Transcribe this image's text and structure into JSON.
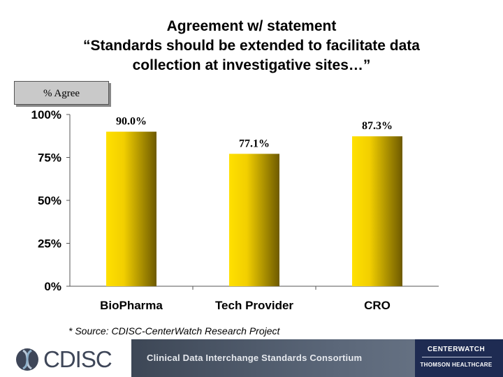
{
  "title_lines": [
    "Agreement w/ statement",
    "“Standards should be extended to facilitate data",
    "collection at investigative sites…”"
  ],
  "badge": "% Agree",
  "chart_data": {
    "type": "bar",
    "categories": [
      "BioPharma",
      "Tech Provider",
      "CRO"
    ],
    "values": [
      90.0,
      77.1,
      87.3
    ],
    "value_labels": [
      "90.0%",
      "77.1%",
      "87.3%"
    ],
    "ylim": [
      0,
      100
    ],
    "yticks": [
      0,
      25,
      50,
      75,
      100
    ],
    "ytick_labels": [
      "0%",
      "25%",
      "50%",
      "75%",
      "100%"
    ],
    "grid": false,
    "bar_color_light": "#ffe000",
    "bar_color_dark": "#6e5a00"
  },
  "source": "* Source: CDISC-CenterWatch Research Project",
  "footer": {
    "left_logo": "CDISC",
    "banner_text": "Clinical Data Interchange Standards Consortium",
    "right_logo_line1": "CENTERWATCH",
    "right_logo_line2": "THOMSON HEALTHCARE"
  }
}
